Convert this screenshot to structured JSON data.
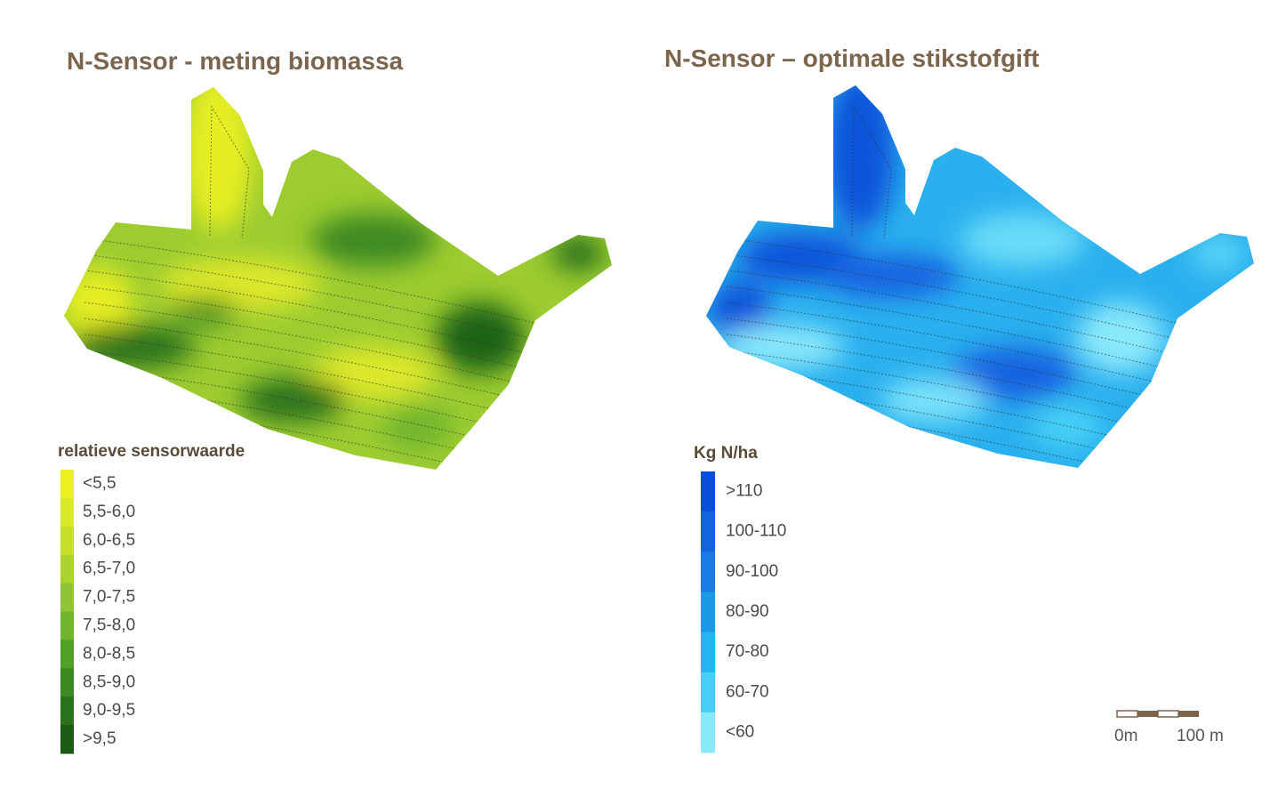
{
  "maps": [
    {
      "title": "N-Sensor - meting biomassa",
      "legend": {
        "title": "relatieve sensorwaarde",
        "items": [
          {
            "label": "<5,5",
            "color": "#ecf01c"
          },
          {
            "label": "5,5-6,0",
            "color": "#dbea26"
          },
          {
            "label": "6,0-6,5",
            "color": "#c6e02a"
          },
          {
            "label": "6,5-7,0",
            "color": "#acd42f"
          },
          {
            "label": "7,0-7,5",
            "color": "#8fc437"
          },
          {
            "label": "7,5-8,0",
            "color": "#70b52d"
          },
          {
            "label": "8,0-8,5",
            "color": "#52a025"
          },
          {
            "label": "8,5-9,0",
            "color": "#3c8a22"
          },
          {
            "label": "9,0-9,5",
            "color": "#2b721c"
          },
          {
            "label": ">9,5",
            "color": "#1a5a14"
          }
        ]
      }
    },
    {
      "title": "N-Sensor – optimale stikstofgift",
      "legend": {
        "title": "Kg N/ha",
        "items": [
          {
            "label": ">110",
            "color": "#0a4fd8"
          },
          {
            "label": "100-110",
            "color": "#1463e0"
          },
          {
            "label": "90-100",
            "color": "#1a7be6"
          },
          {
            "label": "80-90",
            "color": "#1a99e8"
          },
          {
            "label": "70-80",
            "color": "#23b5ef"
          },
          {
            "label": "60-70",
            "color": "#46d0f5"
          },
          {
            "label": "<60",
            "color": "#8ae8fb"
          }
        ]
      }
    }
  ],
  "scale_bar": {
    "labels": [
      "0m",
      "100 m"
    ]
  }
}
